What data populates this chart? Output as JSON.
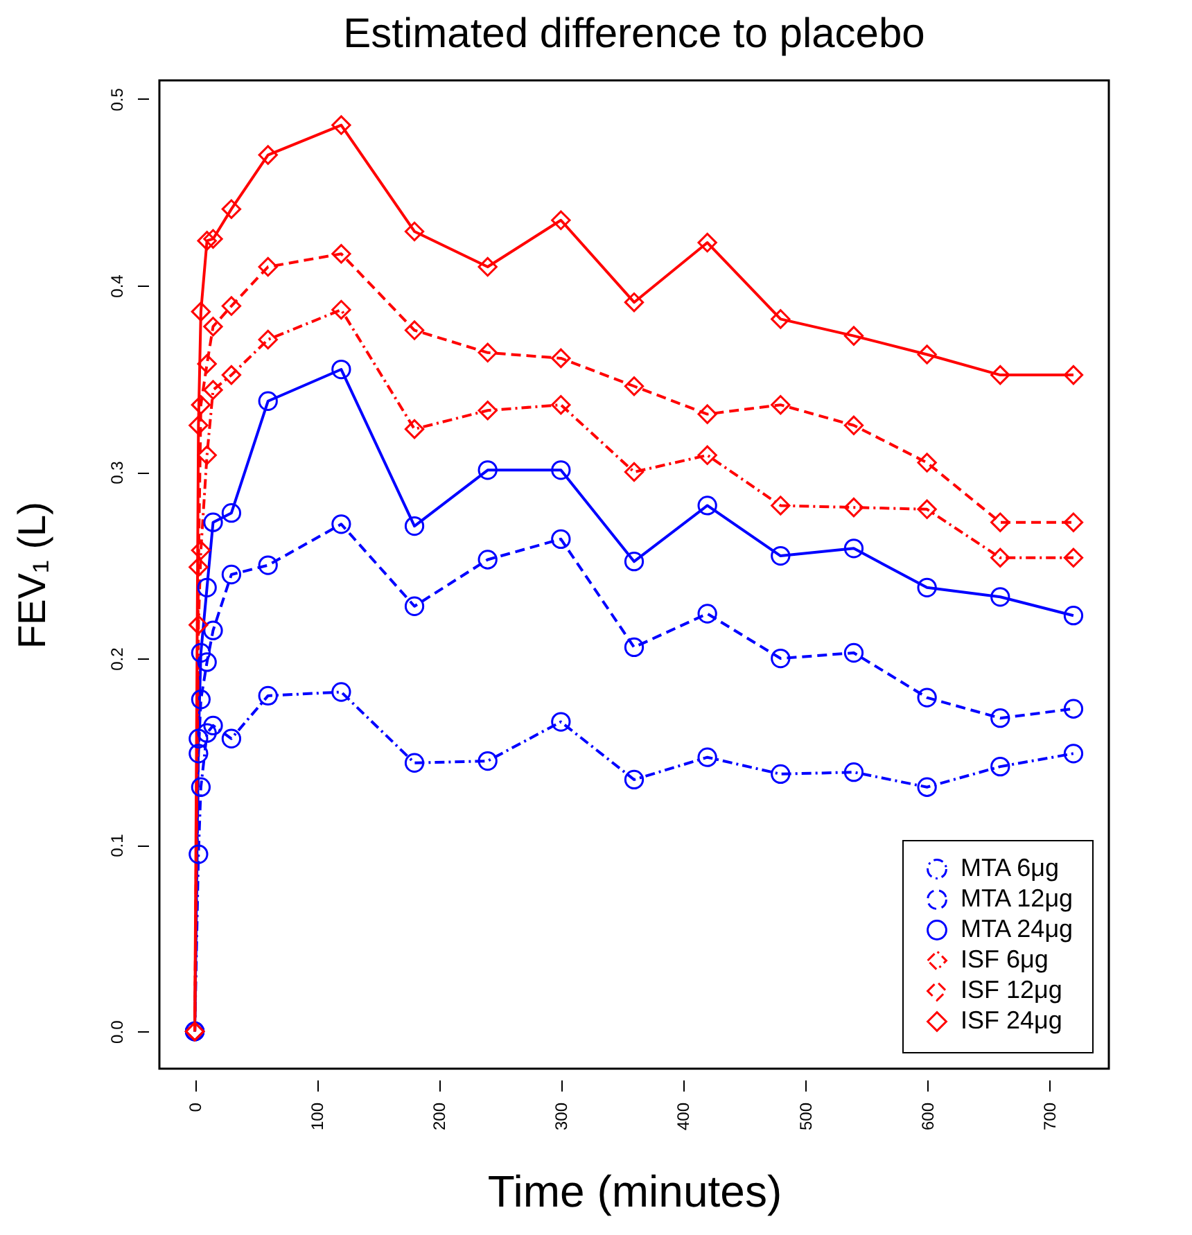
{
  "chart_data": {
    "type": "line",
    "title": "Estimated difference to placebo",
    "xlabel": "Time (minutes)",
    "ylabel": "FEV₁ (L)",
    "x": [
      0,
      3,
      5,
      10,
      15,
      30,
      60,
      120,
      180,
      240,
      300,
      360,
      420,
      480,
      540,
      600,
      660,
      720
    ],
    "xlim": [
      -29,
      749
    ],
    "xticks": [
      0,
      100,
      200,
      300,
      400,
      500,
      600,
      700
    ],
    "ylim": [
      -0.02,
      0.51
    ],
    "yticks": [
      {
        "value": 0,
        "label": "0.0"
      },
      {
        "value": 0.1,
        "label": "0.1"
      },
      {
        "value": 0.2,
        "label": "0.2"
      },
      {
        "value": 0.3,
        "label": "0.3"
      },
      {
        "value": 0.4,
        "label": "0.4"
      },
      {
        "value": 0.5,
        "label": "0.5"
      }
    ],
    "grid": false,
    "legend": "bottom right",
    "series": [
      {
        "name": "MTA 6μg",
        "color": "#0000ff",
        "marker": "circle",
        "line_style": "dashdot",
        "values": [
          0,
          0.095,
          0.131,
          0.16,
          0.164,
          0.157,
          0.18,
          0.182,
          0.144,
          0.145,
          0.166,
          0.135,
          0.147,
          0.138,
          0.139,
          0.131,
          0.142,
          0.149
        ]
      },
      {
        "name": "MTA 12μg",
        "color": "#0000ff",
        "marker": "circle",
        "line_style": "dashed",
        "values": [
          0,
          0.149,
          0.178,
          0.198,
          0.215,
          0.245,
          0.25,
          0.272,
          0.228,
          0.253,
          0.264,
          0.206,
          0.224,
          0.2,
          0.203,
          0.179,
          0.168,
          0.173
        ]
      },
      {
        "name": "MTA 24μg",
        "color": "#0000ff",
        "marker": "circle",
        "line_style": "solid",
        "values": [
          0,
          0.157,
          0.203,
          0.238,
          0.273,
          0.278,
          0.338,
          0.355,
          0.271,
          0.301,
          0.301,
          0.252,
          0.282,
          0.255,
          0.259,
          0.238,
          0.233,
          0.223
        ]
      },
      {
        "name": "ISF 6μg",
        "color": "#ff0000",
        "marker": "diamond",
        "line_style": "dashdot",
        "values": [
          0,
          0.218,
          0.258,
          0.309,
          0.344,
          0.352,
          0.371,
          0.387,
          0.323,
          0.333,
          0.336,
          0.3,
          0.309,
          0.282,
          0.281,
          0.28,
          0.254,
          0.254
        ]
      },
      {
        "name": "ISF 12μg",
        "color": "#ff0000",
        "marker": "diamond",
        "line_style": "dashed",
        "values": [
          0,
          0.249,
          0.336,
          0.358,
          0.378,
          0.389,
          0.41,
          0.417,
          0.376,
          0.364,
          0.361,
          0.346,
          0.331,
          0.336,
          0.325,
          0.305,
          0.273,
          0.273
        ]
      },
      {
        "name": "ISF 24μg",
        "color": "#ff0000",
        "marker": "diamond",
        "line_style": "solid",
        "values": [
          0,
          0.325,
          0.386,
          0.424,
          0.425,
          0.441,
          0.47,
          0.486,
          0.429,
          0.41,
          0.435,
          0.391,
          0.423,
          0.382,
          0.373,
          0.363,
          0.352,
          0.352
        ]
      }
    ]
  }
}
